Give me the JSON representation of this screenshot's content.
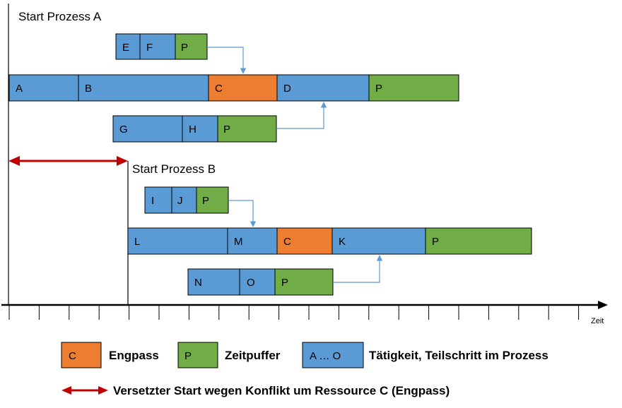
{
  "colors": {
    "activity": "#5b9bd5",
    "bottleneck": "#ed7d31",
    "buffer": "#70ad47",
    "arrow": "#5b9bd5",
    "offset_arrow": "#c00000",
    "border": "#000000"
  },
  "process_a": {
    "title": "Start Prozess A",
    "feeder_top": [
      "E",
      "F",
      "P"
    ],
    "main_chain": [
      "A",
      "B",
      "C",
      "D",
      "P"
    ],
    "feeder_bottom": [
      "G",
      "H",
      "P"
    ]
  },
  "process_b": {
    "title": "Start Prozess B",
    "feeder_top": [
      "I",
      "J",
      "P"
    ],
    "main_chain": [
      "L",
      "M",
      "C",
      "K",
      "P"
    ],
    "feeder_bottom": [
      "N",
      "O",
      "P"
    ]
  },
  "axis": {
    "label": "Zeit"
  },
  "legend": {
    "bottleneck_box": "C",
    "bottleneck_label": "Engpass",
    "buffer_box": "P",
    "buffer_label": "Zeitpuffer",
    "activity_box": "A … O",
    "activity_label": "Tätigkeit, Teilschritt im Prozess",
    "offset_label": "Versetzter Start wegen Konflikt um Ressource C (Engpass)"
  }
}
